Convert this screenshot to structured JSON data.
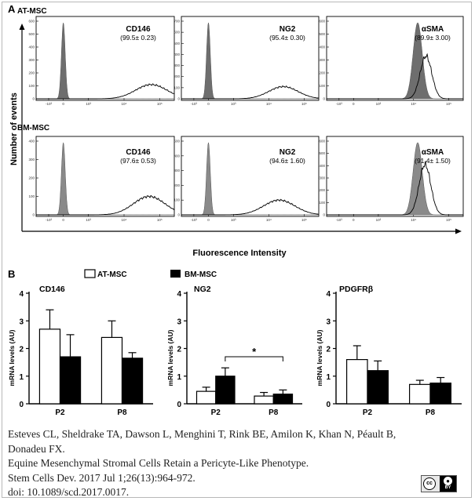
{
  "figure": {
    "panel_a_label": "A",
    "panel_b_label": "B",
    "y_axis_label": "Number of events",
    "x_axis_label": "Fluorescence Intensity",
    "at_row_label": "AT-MSC",
    "bm_row_label": "BM-MSC",
    "flow_x_ticks": [
      "-10³",
      "0",
      "10³",
      "10⁴",
      "10⁵"
    ],
    "legend": {
      "at_label": "AT-MSC",
      "bm_label": "BM-MSC"
    },
    "significance_marker": "*"
  },
  "chart_data": [
    {
      "type": "area",
      "title": "AT-MSC CD146",
      "marker": "CD146",
      "value": "(99.5± 0.23)",
      "yticks": [
        "0",
        "100",
        "200",
        "300",
        "400",
        "500",
        "600"
      ],
      "ylim": [
        0,
        600
      ],
      "control_peak_x": 0,
      "sample_peak_x": 4.2,
      "sample_peak_y": 110,
      "sample_spread": 0.75
    },
    {
      "type": "area",
      "title": "AT-MSC NG2",
      "marker": "NG2",
      "value": "(95.4± 0.30)",
      "yticks": [
        "0",
        "100",
        "200",
        "300",
        "400",
        "500",
        "600",
        "700"
      ],
      "ylim": [
        0,
        700
      ],
      "control_peak_x": 0,
      "sample_peak_x": 3.6,
      "sample_peak_y": 110,
      "sample_spread": 0.7
    },
    {
      "type": "area",
      "title": "AT-MSC αSMA",
      "marker": "αSMA",
      "value": "(89.9± 3.00)",
      "yticks": [
        "0",
        "100",
        "200",
        "300",
        "400",
        "500",
        "600"
      ],
      "ylim": [
        0,
        600
      ],
      "control_peak_x": 3.1,
      "sample_peak_x": 3.5,
      "sample_peak_y": 330,
      "sample_spread": 0.28
    },
    {
      "type": "area",
      "title": "BM-MSC CD146",
      "marker": "CD146",
      "value": "(97.6± 0.53)",
      "yticks": [
        "0",
        "100",
        "200",
        "300",
        "400"
      ],
      "ylim": [
        0,
        400
      ],
      "control_peak_x": 0,
      "sample_peak_x": 4.1,
      "sample_peak_y": 100,
      "sample_spread": 0.75
    },
    {
      "type": "area",
      "title": "BM-MSC NG2",
      "marker": "NG2",
      "value": "(94.6± 1.60)",
      "yticks": [
        "0",
        "100",
        "200",
        "300",
        "400",
        "500"
      ],
      "ylim": [
        0,
        500
      ],
      "control_peak_x": 0,
      "sample_peak_x": 3.4,
      "sample_peak_y": 100,
      "sample_spread": 0.75
    },
    {
      "type": "area",
      "title": "BM-MSC αSMA",
      "marker": "αSMA",
      "value": "(91.4± 1.50)",
      "yticks": [
        "0",
        "100",
        "200",
        "300",
        "400",
        "500",
        "600"
      ],
      "ylim": [
        0,
        600
      ],
      "control_peak_x": 3.1,
      "sample_peak_x": 3.45,
      "sample_peak_y": 410,
      "sample_spread": 0.28
    },
    {
      "type": "bar",
      "title": "CD146",
      "categories": [
        "P2",
        "P8"
      ],
      "ylabel": "mRNA levels (AU)",
      "ylim": [
        0,
        4
      ],
      "yticks": [
        "0",
        "1",
        "2",
        "3",
        "4"
      ],
      "series": [
        {
          "name": "AT-MSC",
          "values": [
            2.7,
            2.4
          ],
          "errors": [
            0.7,
            0.6
          ]
        },
        {
          "name": "BM-MSC",
          "values": [
            1.7,
            1.65
          ],
          "errors": [
            0.8,
            0.2
          ]
        }
      ]
    },
    {
      "type": "bar",
      "title": "NG2",
      "categories": [
        "P2",
        "P8"
      ],
      "ylabel": "mRNA levels (AU)",
      "ylim": [
        0,
        4
      ],
      "yticks": [
        "0",
        "1",
        "2",
        "3",
        "4"
      ],
      "series": [
        {
          "name": "AT-MSC",
          "values": [
            0.45,
            0.28
          ],
          "errors": [
            0.15,
            0.13
          ]
        },
        {
          "name": "BM-MSC",
          "values": [
            1.0,
            0.35
          ],
          "errors": [
            0.3,
            0.15
          ]
        }
      ]
    },
    {
      "type": "bar",
      "title": "PDGFRβ",
      "categories": [
        "P2",
        "P8"
      ],
      "ylabel": "mRNA levels (AU)",
      "ylim": [
        0,
        4
      ],
      "yticks": [
        "0",
        "1",
        "2",
        "3",
        "4"
      ],
      "series": [
        {
          "name": "AT-MSC",
          "values": [
            1.6,
            0.7
          ],
          "errors": [
            0.5,
            0.15
          ]
        },
        {
          "name": "BM-MSC",
          "values": [
            1.2,
            0.75
          ],
          "errors": [
            0.35,
            0.2
          ]
        }
      ]
    }
  ],
  "caption": {
    "line1": "Esteves CL, Sheldrake TA, Dawson L, Menghini T, Rink BE, Amilon K, Khan N, Péault B,",
    "line2": "Donadeu FX.",
    "line3": "Equine Mesenchymal Stromal Cells Retain a Pericyte-Like Phenotype.",
    "line4": "Stem Cells Dev. 2017 Jul 1;26(13):964-972.",
    "line5": "doi: 10.1089/scd.2017.0017."
  },
  "license": {
    "cc": "cc",
    "by": "BY"
  }
}
